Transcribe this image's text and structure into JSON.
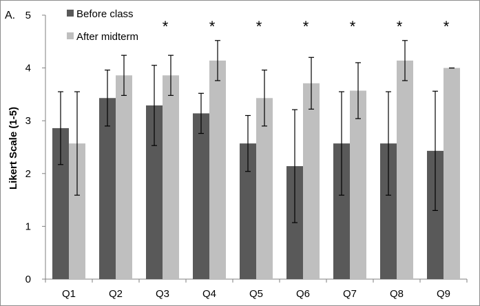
{
  "chart_data": {
    "type": "bar",
    "panel_label": "A.",
    "categories": [
      "Q1",
      "Q2",
      "Q3",
      "Q4",
      "Q5",
      "Q6",
      "Q7",
      "Q8",
      "Q9"
    ],
    "series": [
      {
        "name": "Before class",
        "color": "#595959",
        "values": [
          2.86,
          3.43,
          3.29,
          3.14,
          2.57,
          2.14,
          2.57,
          2.57,
          2.43
        ],
        "error": [
          0.69,
          0.53,
          0.76,
          0.38,
          0.53,
          1.07,
          0.98,
          0.98,
          1.13
        ]
      },
      {
        "name": "After midterm",
        "color": "#bfbfbf",
        "values": [
          2.57,
          3.86,
          3.86,
          4.14,
          3.43,
          3.71,
          3.57,
          4.14,
          4.0
        ],
        "error": [
          0.98,
          0.38,
          0.38,
          0.38,
          0.53,
          0.49,
          0.53,
          0.38,
          0.0
        ]
      }
    ],
    "significance_marker": "*",
    "significant": [
      "Q3",
      "Q4",
      "Q5",
      "Q6",
      "Q7",
      "Q8",
      "Q9"
    ],
    "ylabel": "Likert Scale (1-5)",
    "xlabel": "",
    "ylim": [
      0,
      5
    ],
    "yticks": [
      "0",
      "1",
      "2",
      "3",
      "4",
      "5"
    ],
    "grid": false,
    "legend_position": "top-left"
  }
}
